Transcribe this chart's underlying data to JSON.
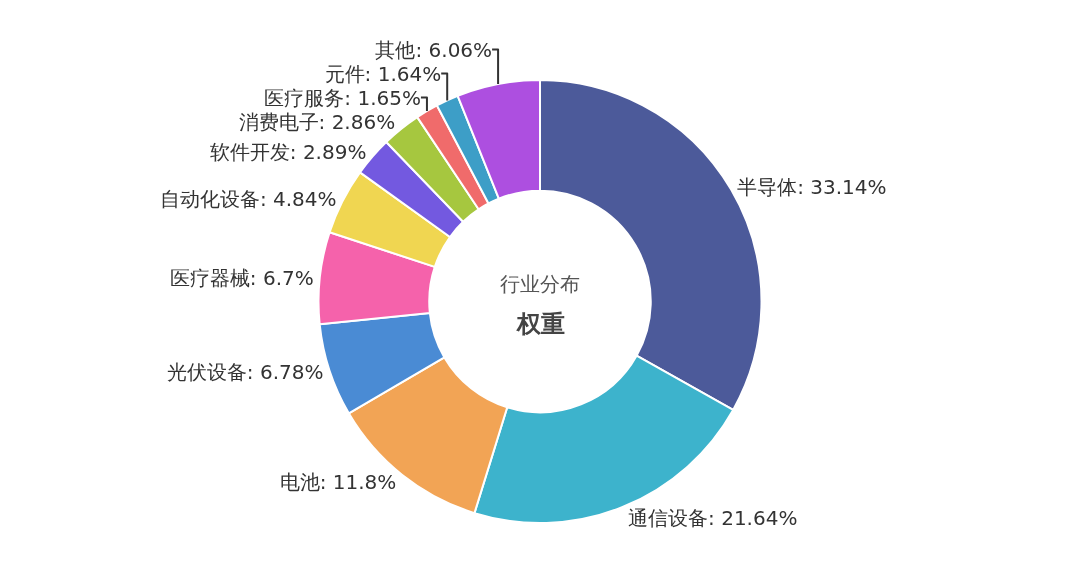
{
  "chart_data": {
    "type": "donut",
    "title": "行业分布",
    "subtitle": "权重",
    "categories": [
      "半导体",
      "通信设备",
      "电池",
      "光伏设备",
      "医疗器械",
      "自动化设备",
      "软件开发",
      "消费电子",
      "医疗服务",
      "元件",
      "其他"
    ],
    "values": [
      33.14,
      21.64,
      11.8,
      6.78,
      6.7,
      4.84,
      2.89,
      2.86,
      1.65,
      1.64,
      6.06
    ],
    "value_labels": [
      "33.14%",
      "21.64%",
      "11.8%",
      "6.78%",
      "6.7%",
      "4.84%",
      "2.89%",
      "2.86%",
      "1.65%",
      "1.64%",
      "6.06%"
    ],
    "colors": [
      "#4c5a9a",
      "#3db3cc",
      "#f2a455",
      "#4a8bd4",
      "#f562ab",
      "#f0d651",
      "#7359e0",
      "#a6c73f",
      "#f06b6b",
      "#3d9ec7",
      "#ad4fe0"
    ],
    "legend": false
  }
}
